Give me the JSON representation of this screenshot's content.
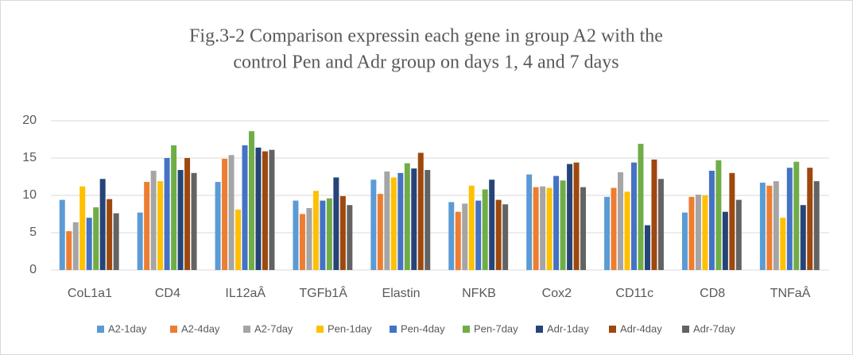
{
  "chart_data": {
    "type": "bar",
    "title": [
      "Fig.3-2 Comparison expressin each gene in group A2 with the",
      "control Pen and Adr group on days 1, 4 and 7 days"
    ],
    "categories": [
      "CoL1a1",
      "CD4",
      "IL12aÂ",
      "TGFb1Â",
      "Elastin",
      "NFKB",
      "Cox2",
      "CD11c",
      "CD8",
      "TNFaÂ"
    ],
    "series": [
      {
        "name": "A2-1day",
        "color": "#5b9bd5",
        "values": [
          9.4,
          7.7,
          11.8,
          9.3,
          12.1,
          9.1,
          12.8,
          9.8,
          7.7,
          11.7
        ]
      },
      {
        "name": "A2-4day",
        "color": "#ed7d31",
        "values": [
          5.2,
          11.8,
          14.9,
          7.5,
          10.2,
          7.8,
          11.1,
          11.0,
          9.8,
          11.3
        ]
      },
      {
        "name": "A2-7day",
        "color": "#a5a5a5",
        "values": [
          6.4,
          13.3,
          15.4,
          8.3,
          13.2,
          8.9,
          11.2,
          13.1,
          10.1,
          11.9
        ]
      },
      {
        "name": "Pen-1day",
        "color": "#ffc000",
        "values": [
          11.2,
          11.9,
          8.1,
          10.6,
          12.4,
          11.3,
          11.0,
          10.5,
          10.0,
          7.0
        ]
      },
      {
        "name": "Pen-4day",
        "color": "#4472c4",
        "values": [
          7.0,
          15.0,
          16.7,
          9.3,
          13.0,
          9.3,
          12.6,
          14.4,
          13.3,
          13.7
        ]
      },
      {
        "name": "Pen-7day",
        "color": "#70ad47",
        "values": [
          8.4,
          16.7,
          18.6,
          9.6,
          14.3,
          10.8,
          12.0,
          16.9,
          14.7,
          14.5
        ]
      },
      {
        "name": "Adr-1day",
        "color": "#264478",
        "values": [
          12.2,
          13.4,
          16.4,
          12.4,
          13.6,
          12.1,
          14.2,
          6.0,
          7.8,
          8.7
        ]
      },
      {
        "name": "Adr-4day",
        "color": "#9e480e",
        "values": [
          9.5,
          15.0,
          15.9,
          9.9,
          15.7,
          9.4,
          14.4,
          14.8,
          13.0,
          13.7
        ]
      },
      {
        "name": "Adr-7day",
        "color": "#636363",
        "values": [
          7.6,
          13.0,
          16.1,
          8.7,
          13.4,
          8.8,
          11.1,
          12.2,
          9.4,
          11.9
        ]
      }
    ],
    "ylim": [
      0,
      20
    ],
    "yticks": [
      0,
      5,
      10,
      15,
      20
    ],
    "grid": true,
    "legend": "bottom"
  }
}
